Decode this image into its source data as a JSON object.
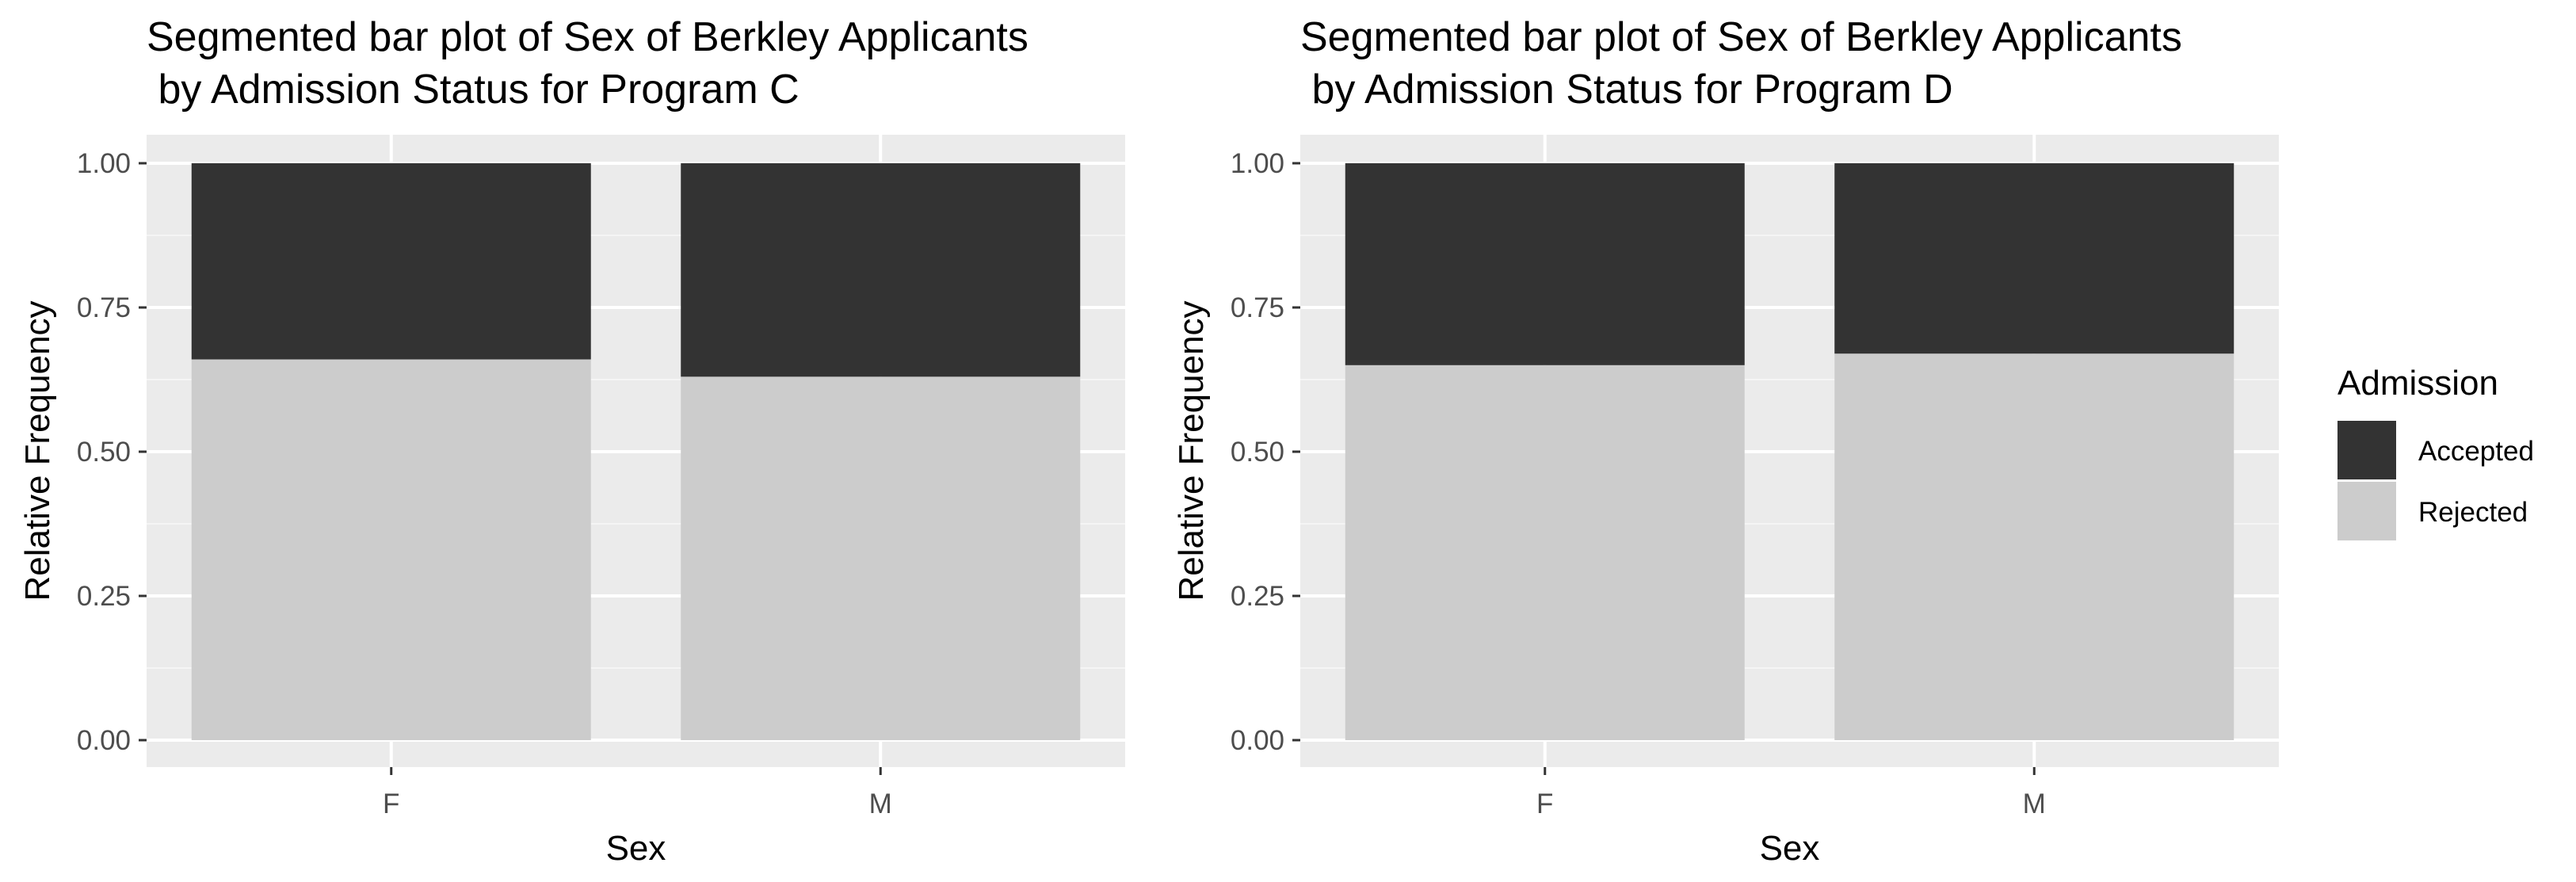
{
  "chart_data": [
    {
      "type": "bar",
      "stacked": true,
      "title": "Segmented bar plot of Sex of Berkley Applicants\n by Admission Status for Program C",
      "xlabel": "Sex",
      "ylabel": "Relative Frequency",
      "categories": [
        "F",
        "M"
      ],
      "ylim": [
        0,
        1
      ],
      "yticks": [
        "0.00",
        "0.25",
        "0.50",
        "0.75",
        "1.00"
      ],
      "grid": true,
      "series": [
        {
          "name": "Rejected",
          "values": [
            0.66,
            0.63
          ],
          "color": "#cccccc"
        },
        {
          "name": "Accepted",
          "values": [
            0.34,
            0.37
          ],
          "color": "#333333"
        }
      ]
    },
    {
      "type": "bar",
      "stacked": true,
      "title": "Segmented bar plot of Sex of Berkley Applicants\n by Admission Status for Program D",
      "xlabel": "Sex",
      "ylabel": "Relative Frequency",
      "categories": [
        "F",
        "M"
      ],
      "ylim": [
        0,
        1
      ],
      "yticks": [
        "0.00",
        "0.25",
        "0.50",
        "0.75",
        "1.00"
      ],
      "grid": true,
      "series": [
        {
          "name": "Rejected",
          "values": [
            0.65,
            0.67
          ],
          "color": "#cccccc"
        },
        {
          "name": "Accepted",
          "values": [
            0.35,
            0.33
          ],
          "color": "#333333"
        }
      ]
    }
  ],
  "legend": {
    "title": "Admission",
    "placement": "right",
    "items": [
      {
        "label": "Accepted",
        "color": "#333333"
      },
      {
        "label": "Rejected",
        "color": "#cccccc"
      }
    ]
  },
  "colors": {
    "panel_background": "#ebebeb",
    "grid_major": "#ffffff",
    "grid_minor": "#f5f5f5",
    "tick_text": "#4d4d4d"
  }
}
